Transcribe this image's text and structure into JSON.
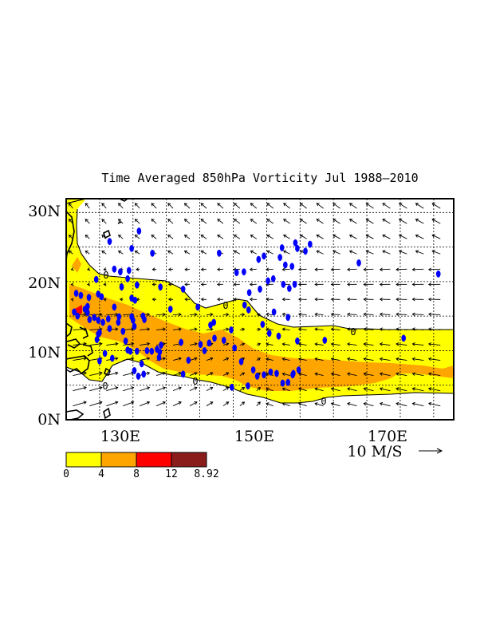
{
  "title": "Time Averaged 850hPa Vorticity  Jul 1988–2010",
  "map": {
    "lon_range": [
      120,
      178
    ],
    "lat_range": [
      0,
      32
    ],
    "x_ticks": [
      {
        "lon": 130,
        "label": "130E"
      },
      {
        "lon": 150,
        "label": "150E"
      },
      {
        "lon": 170,
        "label": "170E"
      }
    ],
    "y_ticks": [
      {
        "lat": 0,
        "label": "0N"
      },
      {
        "lat": 10,
        "label": "10N"
      },
      {
        "lat": 20,
        "label": "20N"
      },
      {
        "lat": 30,
        "label": "30N"
      }
    ],
    "grid_lons": [
      125,
      130,
      135,
      140,
      145,
      150,
      155,
      160,
      165,
      170,
      175
    ],
    "grid_lats": [
      5,
      10,
      15,
      20,
      25,
      30
    ],
    "contour_label": "0"
  },
  "vector_reference": {
    "label": "10 M/S",
    "speed": 10
  },
  "legend": {
    "levels": [
      "0",
      "4",
      "8",
      "12",
      "8.92"
    ],
    "colors": [
      "#ffff00",
      "#ffa500",
      "#ff0000",
      "#8b1c1c"
    ]
  },
  "colors": {
    "shade_low": "#ffff00",
    "shade_mid": "#ffa500",
    "shade_high": "#ff0000",
    "storm_marker": "#0000ff",
    "coast": "#000000"
  },
  "storm_points": [
    [
      121.5,
      18.3
    ],
    [
      122.2,
      18
    ],
    [
      123.4,
      17.7
    ],
    [
      124.8,
      18.2
    ],
    [
      125.3,
      17.8
    ],
    [
      124.5,
      20.3
    ],
    [
      127.2,
      21.8
    ],
    [
      128.1,
      21.4
    ],
    [
      129.2,
      20.4
    ],
    [
      130.6,
      19.5
    ],
    [
      129.4,
      21.6
    ],
    [
      128.3,
      19.2
    ],
    [
      129.8,
      17.6
    ],
    [
      130.3,
      17.3
    ],
    [
      127.2,
      16.3
    ],
    [
      127.9,
      14.9
    ],
    [
      126.3,
      14.6
    ],
    [
      125.5,
      14.1
    ],
    [
      124.8,
      14.4
    ],
    [
      124.2,
      14.8
    ],
    [
      123.5,
      14.5
    ],
    [
      123.2,
      15.5
    ],
    [
      122.8,
      16
    ],
    [
      121.2,
      15.6
    ],
    [
      121.7,
      15
    ],
    [
      123.2,
      16.4
    ],
    [
      124.8,
      12.4
    ],
    [
      125,
      12.6
    ],
    [
      124.6,
      11.6
    ],
    [
      126.5,
      13.2
    ],
    [
      127.8,
      14.1
    ],
    [
      129.8,
      14.9
    ],
    [
      130,
      14.4
    ],
    [
      131.5,
      15
    ],
    [
      131.7,
      14.5
    ],
    [
      130.2,
      13.5
    ],
    [
      128.5,
      12.8
    ],
    [
      128.9,
      11.4
    ],
    [
      129.2,
      10.1
    ],
    [
      129.6,
      9.9
    ],
    [
      130.6,
      9.9
    ],
    [
      132.1,
      10
    ],
    [
      132.8,
      9.9
    ],
    [
      133.6,
      10.2
    ],
    [
      134,
      9.8
    ],
    [
      133.9,
      9
    ],
    [
      131.3,
      8.1
    ],
    [
      130.2,
      7.1
    ],
    [
      130.8,
      6.3
    ],
    [
      131.6,
      6.6
    ],
    [
      126.9,
      8.9
    ],
    [
      125,
      8.5
    ],
    [
      125.8,
      9.6
    ],
    [
      134.2,
      10.8
    ],
    [
      135.6,
      16
    ],
    [
      137.2,
      11.2
    ],
    [
      138.3,
      8.6
    ],
    [
      137.5,
      6.6
    ],
    [
      140.7,
      10
    ],
    [
      141.4,
      11.1
    ],
    [
      142.2,
      11.8
    ],
    [
      140.1,
      10.9
    ],
    [
      141.6,
      13.7
    ],
    [
      142.1,
      14.1
    ],
    [
      145.2,
      10.4
    ],
    [
      146.2,
      8.4
    ],
    [
      148,
      7.2
    ],
    [
      148.6,
      6.3
    ],
    [
      149.6,
      6.5
    ],
    [
      150.6,
      6.9
    ],
    [
      151.5,
      6.7
    ],
    [
      152.4,
      5.3
    ],
    [
      153.2,
      5.4
    ],
    [
      154,
      6.7
    ],
    [
      154.8,
      7.2
    ],
    [
      153.9,
      6.5
    ],
    [
      147.2,
      4.9
    ],
    [
      144.8,
      4.7
    ],
    [
      143.6,
      11.5
    ],
    [
      144.7,
      13
    ],
    [
      146.7,
      16.6
    ],
    [
      147.3,
      15.9
    ],
    [
      149,
      18.9
    ],
    [
      150.2,
      20.1
    ],
    [
      151,
      20.4
    ],
    [
      152.5,
      19.6
    ],
    [
      153.4,
      19
    ],
    [
      154.2,
      19.6
    ],
    [
      146.6,
      21.4
    ],
    [
      145.5,
      21.3
    ],
    [
      147.4,
      18.4
    ],
    [
      148.8,
      23.2
    ],
    [
      149.6,
      23.7
    ],
    [
      152,
      23.5
    ],
    [
      152.8,
      22.4
    ],
    [
      153.8,
      22.2
    ],
    [
      154.6,
      24.8
    ],
    [
      155.8,
      24.4
    ],
    [
      156.5,
      25.4
    ],
    [
      152.3,
      24.9
    ],
    [
      154.3,
      25.6
    ],
    [
      153.2,
      14.8
    ],
    [
      151.1,
      15.6
    ],
    [
      149.4,
      13.8
    ],
    [
      150.4,
      12.5
    ],
    [
      151.8,
      12.1
    ],
    [
      154.6,
      11.4
    ],
    [
      158.7,
      11.5
    ],
    [
      163.8,
      22.7
    ],
    [
      170.5,
      11.8
    ],
    [
      175.7,
      21.1
    ],
    [
      126.5,
      25.8
    ],
    [
      129.8,
      24.8
    ],
    [
      130.9,
      27.3
    ],
    [
      132.9,
      24.1
    ],
    [
      134.1,
      19.2
    ],
    [
      137.5,
      18.9
    ],
    [
      139.7,
      16.3
    ],
    [
      142.9,
      24.1
    ]
  ]
}
